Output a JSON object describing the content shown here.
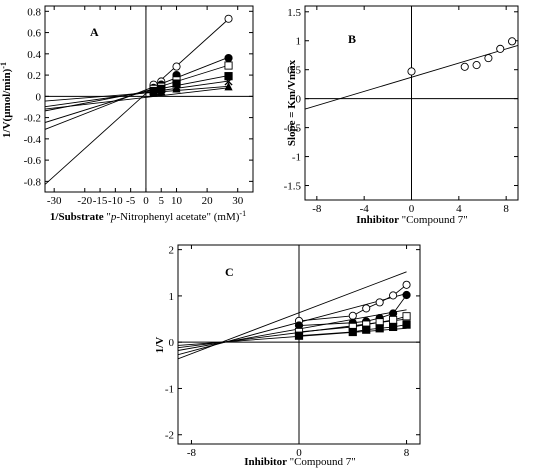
{
  "chart_data": [
    {
      "panel": "A",
      "type": "line",
      "xlabel_bold": "1/Substrate ",
      "xlabel_plain": "\"p-Nitrophenyl acetate\" (mM)",
      "xlabel_sup": "-1",
      "ylabel": "1/V(µmol/min)",
      "ylabel_sup": "-1",
      "xlim": [
        -33,
        35
      ],
      "ylim": [
        -0.9,
        0.85
      ],
      "xticks": [
        "-30",
        "-20",
        "-15",
        "-10",
        "-5",
        "0",
        "5",
        "10",
        "20",
        "30"
      ],
      "xtick_values": [
        -30,
        -20,
        -15,
        -10,
        -5,
        0,
        5,
        10,
        20,
        30
      ],
      "yticks": [
        "-0.8",
        "-0.6",
        "-0.4",
        "-0.2",
        "0",
        "0.2",
        "0.4",
        "0.6",
        "0.8"
      ],
      "ytick_values": [
        -0.8,
        -0.6,
        -0.4,
        -0.2,
        0,
        0.2,
        0.4,
        0.6,
        0.8
      ],
      "series": [
        {
          "marker": "circle-open",
          "x": [
            2.5,
            5,
            10,
            27
          ],
          "y": [
            0.11,
            0.14,
            0.28,
            0.73
          ]
        },
        {
          "marker": "circle-filled",
          "x": [
            2.5,
            5,
            10,
            27
          ],
          "y": [
            0.08,
            0.11,
            0.2,
            0.36
          ]
        },
        {
          "marker": "square-open",
          "x": [
            2.5,
            5,
            10,
            27
          ],
          "y": [
            0.07,
            0.09,
            0.15,
            0.29
          ]
        },
        {
          "marker": "square-filled",
          "x": [
            2.5,
            5,
            10,
            27
          ],
          "y": [
            0.05,
            0.07,
            0.12,
            0.19
          ]
        },
        {
          "marker": "x",
          "x": [
            2.5,
            5,
            10,
            27
          ],
          "y": [
            0.04,
            0.05,
            0.09,
            0.14
          ]
        },
        {
          "marker": "triangle-filled",
          "x": [
            2.5,
            5,
            10,
            27
          ],
          "y": [
            0.03,
            0.04,
            0.07,
            0.09
          ]
        }
      ],
      "extra_lines": [
        {
          "x": [
            -33,
            27
          ],
          "y": [
            -0.12,
            0.08
          ]
        }
      ]
    },
    {
      "panel": "B",
      "type": "scatter",
      "xlabel_bold": "Inhibitor ",
      "xlabel_plain": "\"Compound 7\"",
      "ylabel": "Slope = Km/Vmax",
      "xlim": [
        -9,
        9
      ],
      "ylim": [
        -1.75,
        1.6
      ],
      "xticks": [
        "-8",
        "-4",
        "0",
        "4",
        "8"
      ],
      "xtick_values": [
        -8,
        -4,
        0,
        4,
        8
      ],
      "yticks": [
        "-1.5",
        "-1",
        "-0.5",
        "0",
        "0.5",
        "1",
        "1.5"
      ],
      "ytick_values": [
        -1.5,
        -1,
        -0.5,
        0,
        0.5,
        1,
        1.5
      ],
      "series": [
        {
          "marker": "circle-open",
          "x": [
            0,
            4.5,
            5.5,
            6.5,
            7.5,
            8.5
          ],
          "y": [
            0.47,
            0.55,
            0.58,
            0.7,
            0.86,
            0.99
          ]
        }
      ],
      "fit_line": {
        "x": [
          -9,
          9
        ],
        "y": [
          -0.18,
          0.92
        ]
      }
    },
    {
      "panel": "C",
      "type": "line",
      "xlabel_bold": "Inhibitor ",
      "xlabel_plain": "\"Compound 7\"",
      "ylabel": "1/V",
      "xlim": [
        -9,
        9
      ],
      "ylim": [
        -2.2,
        2.1
      ],
      "xticks": [
        "-8",
        "0",
        "8"
      ],
      "xtick_values": [
        -8,
        0,
        8
      ],
      "yticks": [
        "-2",
        "-1",
        "0",
        "1",
        "2"
      ],
      "ytick_values": [
        -2,
        -1,
        0,
        1,
        2
      ],
      "series": [
        {
          "marker": "circle-open",
          "x": [
            0,
            4,
            5,
            6,
            7,
            8
          ],
          "y": [
            0.46,
            0.57,
            0.73,
            0.86,
            1.01,
            1.24
          ]
        },
        {
          "marker": "circle-filled",
          "x": [
            0,
            4,
            5,
            6,
            7,
            8
          ],
          "y": [
            0.36,
            0.42,
            0.45,
            0.52,
            0.62,
            1.02
          ]
        },
        {
          "marker": "square-open",
          "x": [
            0,
            4,
            5,
            6,
            7,
            8
          ],
          "y": [
            0.22,
            0.33,
            0.38,
            0.43,
            0.48,
            0.56
          ]
        },
        {
          "marker": "square-filled",
          "x": [
            0,
            4,
            5,
            6,
            7,
            8
          ],
          "y": [
            0.14,
            0.22,
            0.27,
            0.3,
            0.33,
            0.38
          ]
        }
      ],
      "fit_lines": [
        {
          "x": [
            -9,
            8
          ],
          "y": [
            -0.36,
            1.52
          ]
        },
        {
          "x": [
            -9,
            8
          ],
          "y": [
            -0.27,
            1.05
          ]
        },
        {
          "x": [
            -9,
            8
          ],
          "y": [
            -0.18,
            0.7
          ]
        },
        {
          "x": [
            -9,
            8
          ],
          "y": [
            -0.12,
            0.5
          ]
        },
        {
          "x": [
            -9,
            8
          ],
          "y": [
            -0.07,
            0.3
          ]
        }
      ]
    }
  ]
}
